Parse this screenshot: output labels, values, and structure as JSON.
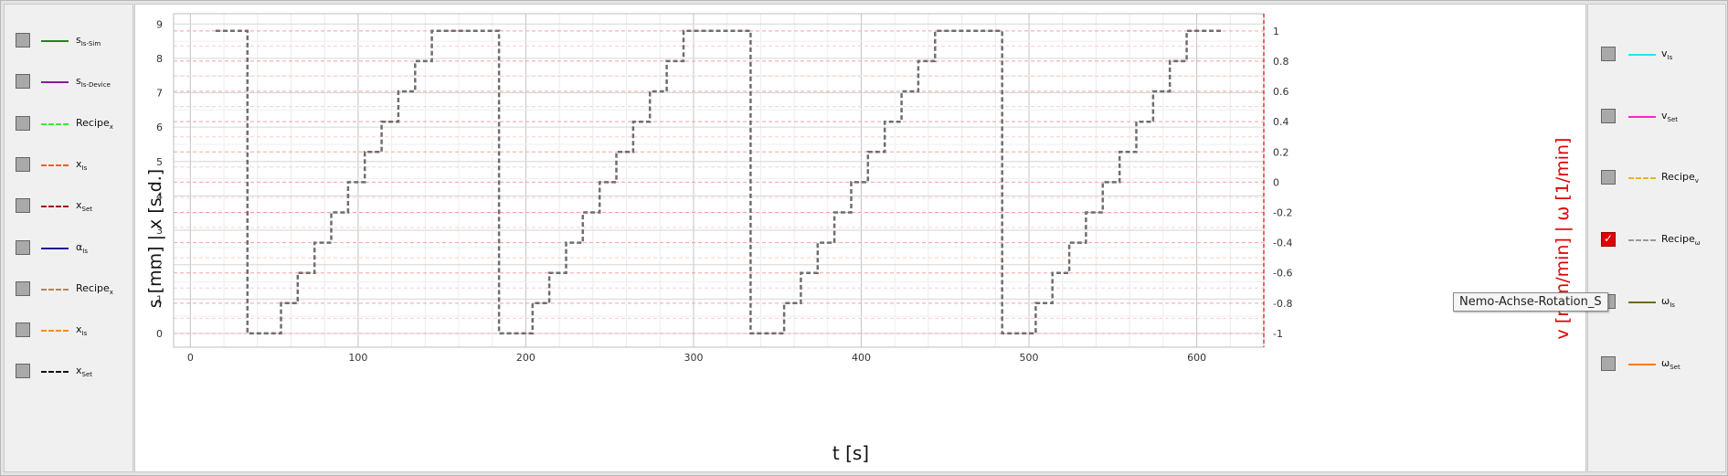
{
  "left_legend": [
    {
      "name": "s",
      "sub": "Is-Sim",
      "color": "#1a8a1a",
      "dash": "",
      "checked": false
    },
    {
      "name": "s",
      "sub": "Is-Device",
      "color": "#8a1a9a",
      "dash": "",
      "checked": false
    },
    {
      "name": "Recipe",
      "sub": "x",
      "color": "#33ee33",
      "dash": "2,4",
      "checked": false
    },
    {
      "name": "x",
      "sub": "Is",
      "color": "#ff5a1a",
      "dash": "8,3,2,3",
      "checked": false
    },
    {
      "name": "x",
      "sub": "Set",
      "color": "#a01010",
      "dash": "8,3,2,3",
      "checked": false
    },
    {
      "name": "α",
      "sub": "Is",
      "color": "#1a1a8a",
      "dash": "",
      "checked": false
    },
    {
      "name": "Recipe",
      "sub": "x",
      "color": "#c08050",
      "dash": "2,4",
      "checked": false
    },
    {
      "name": "x",
      "sub": "Is",
      "color": "#ff8c1a",
      "dash": "8,3,2,3",
      "checked": false
    },
    {
      "name": "x",
      "sub": "Set",
      "color": "#111111",
      "dash": "8,3,2,3",
      "checked": false
    }
  ],
  "right_legend": [
    {
      "name": "v",
      "sub": "Is",
      "color": "#22e8f0",
      "dash": "",
      "checked": false
    },
    {
      "name": "v",
      "sub": "Set",
      "color": "#ff22cc",
      "dash": "",
      "checked": false
    },
    {
      "name": "Recipe",
      "sub": "v",
      "color": "#f0b030",
      "dash": "2,4",
      "checked": false
    },
    {
      "name": "Recipe",
      "sub": "ω",
      "color": "#999999",
      "dash": "2,4",
      "checked": true
    },
    {
      "name": "ω",
      "sub": "Is",
      "color": "#6b6b10",
      "dash": "",
      "checked": false
    },
    {
      "name": "ω",
      "sub": "Set",
      "color": "#ff7a1a",
      "dash": "",
      "checked": false
    }
  ],
  "tooltip": "Nemo-Achse-Rotation_S",
  "chart_data": {
    "type": "line",
    "xlabel": "t [s]",
    "ylabel_left": "s [mm] | x [s.d.]",
    "ylabel_right": "v [mm/min] | ω [1/min]",
    "xlim": [
      -10,
      640
    ],
    "xticks": [
      0,
      100,
      200,
      300,
      400,
      500,
      600
    ],
    "ylim_left": [
      -0.4,
      9.3
    ],
    "yticks_left": [
      0,
      1,
      2,
      3,
      4,
      5,
      6,
      7,
      8,
      9
    ],
    "ylim_right": [
      -1.0,
      1.0
    ],
    "yticks_right": [
      "1",
      "0.8",
      "0.6",
      "0.4",
      "0.2",
      "0",
      "-0.2",
      "-0.4",
      "-0.6",
      "-0.8",
      "-1"
    ],
    "grid": true,
    "series": [
      {
        "color": "#6e6e6e",
        "style": "dashed",
        "axis": "right",
        "x": [
          15,
          34,
          34,
          54,
          54,
          64,
          64,
          74,
          74,
          84,
          84,
          94,
          94,
          104,
          104,
          114,
          114,
          124,
          124,
          134,
          134,
          144,
          144,
          184,
          184,
          204,
          204,
          214,
          214,
          224,
          224,
          234,
          234,
          244,
          244,
          254,
          254,
          264,
          264,
          274,
          274,
          284,
          284,
          294,
          294,
          334,
          334,
          354,
          354,
          364,
          364,
          374,
          374,
          384,
          384,
          394,
          394,
          404,
          404,
          414,
          414,
          424,
          424,
          434,
          434,
          444,
          444,
          484,
          484,
          504,
          504,
          514,
          514,
          524,
          524,
          534,
          534,
          544,
          544,
          554,
          554,
          564,
          564,
          574,
          574,
          584,
          584,
          594,
          594,
          616
        ],
        "y": [
          1,
          1,
          -1,
          -1,
          -0.8,
          -0.8,
          -0.6,
          -0.6,
          -0.4,
          -0.4,
          -0.2,
          -0.2,
          0,
          0,
          0.2,
          0.2,
          0.4,
          0.4,
          0.6,
          0.6,
          0.8,
          0.8,
          1,
          1,
          -1,
          -1,
          -0.8,
          -0.8,
          -0.6,
          -0.6,
          -0.4,
          -0.4,
          -0.2,
          -0.2,
          0,
          0,
          0.2,
          0.2,
          0.4,
          0.4,
          0.6,
          0.6,
          0.8,
          0.8,
          1,
          1,
          -1,
          -1,
          -0.8,
          -0.8,
          -0.6,
          -0.6,
          -0.4,
          -0.4,
          -0.2,
          -0.2,
          0,
          0,
          0.2,
          0.2,
          0.4,
          0.4,
          0.6,
          0.6,
          0.8,
          0.8,
          1,
          1,
          -1,
          -1,
          -0.8,
          -0.8,
          -0.6,
          -0.6,
          -0.4,
          -0.4,
          -0.2,
          -0.2,
          0,
          0,
          0.2,
          0.2,
          0.4,
          0.4,
          0.6,
          0.6,
          0.8,
          0.8,
          1,
          1
        ]
      }
    ]
  }
}
